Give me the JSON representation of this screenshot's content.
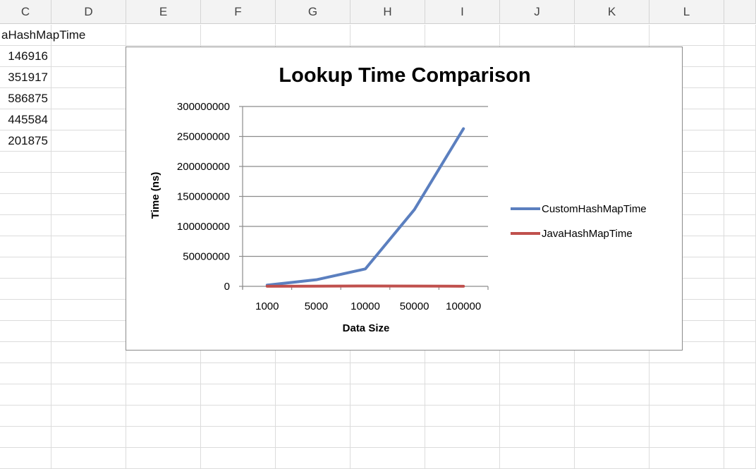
{
  "spreadsheet": {
    "columns": [
      "C",
      "D",
      "E",
      "F",
      "G",
      "H",
      "I",
      "J",
      "K",
      "L"
    ],
    "header_cell": "aHashMapTime",
    "column_c_values": [
      "146916",
      "351917",
      "586875",
      "445584",
      "201875"
    ]
  },
  "chart_data": {
    "type": "line",
    "title": "Lookup Time Comparison",
    "xlabel": "Data Size",
    "ylabel": "Time (ns)",
    "categories": [
      "1000",
      "5000",
      "10000",
      "50000",
      "100000"
    ],
    "y_ticks": [
      "300000000",
      "250000000",
      "200000000",
      "150000000",
      "100000000",
      "50000000",
      "0"
    ],
    "ylim": [
      0,
      300000000
    ],
    "grid": true,
    "legend_position": "right",
    "series": [
      {
        "name": "CustomHashMapTime",
        "color": "#5b7fbf",
        "values": [
          2000000,
          11000000,
          29000000,
          128000000,
          263000000
        ]
      },
      {
        "name": "JavaHashMapTime",
        "color": "#c0504d",
        "values": [
          146916,
          351917,
          586875,
          445584,
          201875
        ]
      }
    ]
  }
}
